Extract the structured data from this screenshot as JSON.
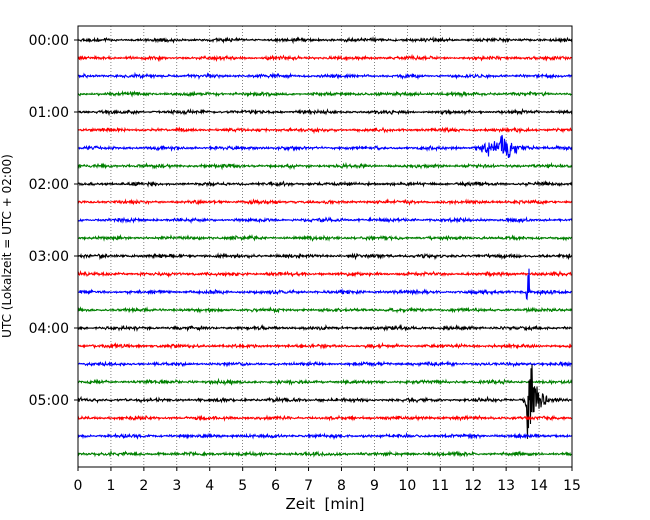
{
  "chart_data": {
    "type": "line",
    "title": "",
    "xlabel": "Zeit  [min]",
    "ylabel": "UTC (Lokalzeit = UTC + 02:00)",
    "xlim": [
      0,
      15
    ],
    "x_ticks": [
      0,
      1,
      2,
      3,
      4,
      5,
      6,
      7,
      8,
      9,
      10,
      11,
      12,
      13,
      14,
      15
    ],
    "y_tick_labels": [
      "00:00",
      "01:00",
      "02:00",
      "03:00",
      "04:00",
      "05:00"
    ],
    "rows_per_hour": 4,
    "row_minutes": 15,
    "trace_count": 24,
    "grid": {
      "vertical": true,
      "style": "dotted"
    },
    "colors": [
      "#000000",
      "#ff0000",
      "#0000ff",
      "#008000"
    ],
    "events": [
      {
        "trace_index": 6,
        "start_min": 11.6,
        "peak_min": 12.9,
        "end_min": 14.0,
        "amplitude": "medium",
        "color": "#0000ff"
      },
      {
        "trace_index": 14,
        "start_min": 13.6,
        "peak_min": 13.65,
        "end_min": 13.7,
        "amplitude": "large",
        "color": "#000000"
      },
      {
        "trace_index": 20,
        "start_min": 13.5,
        "peak_min": 13.65,
        "end_min": 14.3,
        "amplitude": "large",
        "color": "#000000"
      }
    ]
  }
}
